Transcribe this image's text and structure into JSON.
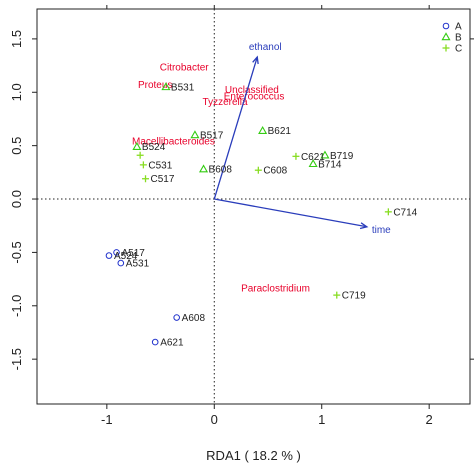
{
  "chart_data": {
    "type": "scatter",
    "title": "",
    "xlabel": "RDA1 ( 18.2 % )",
    "ylabel": "",
    "xlim": [
      -1.65,
      2.38
    ],
    "ylim": [
      -1.92,
      1.78
    ],
    "x_ticks": [
      -1,
      0,
      1,
      2
    ],
    "y_ticks": [
      -1.5,
      -1.0,
      -0.5,
      0.0,
      0.5,
      1.0,
      1.5
    ],
    "x_tick_labels": [
      "-1",
      "0",
      "1",
      "2"
    ],
    "y_tick_labels": [
      "-1.5",
      "-1.0",
      "-0.5",
      "0.0",
      "0.5",
      "1.0",
      "1.5"
    ],
    "reference_lines": {
      "x": 0,
      "y": 0,
      "style": "dotted"
    },
    "grid": false,
    "legend": {
      "placement": "top-right",
      "entries": [
        {
          "label": "A",
          "marker": "circle",
          "color": "#2233cc"
        },
        {
          "label": "B",
          "marker": "triangle",
          "color": "#33cc11"
        },
        {
          "label": "C",
          "marker": "plus",
          "color": "#88dd22"
        }
      ]
    },
    "series": [
      {
        "name": "A",
        "marker": "circle",
        "color": "#2233cc",
        "points": [
          {
            "label": "A517",
            "x": -0.91,
            "y": -0.5
          },
          {
            "label": "A524",
            "x": -0.98,
            "y": -0.53
          },
          {
            "label": "A531",
            "x": -0.87,
            "y": -0.6
          },
          {
            "label": "A608",
            "x": -0.35,
            "y": -1.11
          },
          {
            "label": "A621",
            "x": -0.55,
            "y": -1.34
          }
        ]
      },
      {
        "name": "B",
        "marker": "triangle",
        "color": "#33cc11",
        "points": [
          {
            "label": "B531",
            "x": -0.45,
            "y": 1.05
          },
          {
            "label": "B517",
            "x": -0.18,
            "y": 0.6
          },
          {
            "label": "B621",
            "x": 0.45,
            "y": 0.64
          },
          {
            "label": "B524",
            "x": -0.72,
            "y": 0.49
          },
          {
            "label": "B608",
            "x": -0.1,
            "y": 0.28
          },
          {
            "label": "B719",
            "x": 1.03,
            "y": 0.41
          },
          {
            "label": "B714",
            "x": 0.92,
            "y": 0.33
          }
        ]
      },
      {
        "name": "C",
        "marker": "plus",
        "color": "#88dd22",
        "points": [
          {
            "label": "C531",
            "x": -0.66,
            "y": 0.32
          },
          {
            "label": "C517",
            "x": -0.64,
            "y": 0.19
          },
          {
            "label": "C621",
            "x": 0.76,
            "y": 0.4
          },
          {
            "label": "C608",
            "x": 0.41,
            "y": 0.27
          },
          {
            "label": "C714",
            "x": 1.62,
            "y": -0.12
          },
          {
            "label": "C719",
            "x": 1.14,
            "y": -0.9
          }
        ]
      },
      {
        "name": "",
        "marker": "plus",
        "color": "#88dd22",
        "points": [
          {
            "label": "",
            "x": -0.69,
            "y": 0.41
          }
        ]
      }
    ],
    "vectors": [
      {
        "label": "ethanol",
        "x": 0.4,
        "y": 1.33,
        "color": "#2a3dbb"
      },
      {
        "label": "time",
        "x": 1.42,
        "y": -0.26,
        "color": "#2a3dbb"
      }
    ],
    "taxa_labels": [
      {
        "label": "Citrobacter",
        "x": -0.28,
        "y": 1.23
      },
      {
        "label": "Proteus",
        "x": -0.55,
        "y": 1.07
      },
      {
        "label": "Unclassified",
        "x": 0.35,
        "y": 1.02
      },
      {
        "label": "Enterococcus",
        "x": 0.37,
        "y": 0.96
      },
      {
        "label": "Tyzzerella",
        "x": 0.1,
        "y": 0.91
      },
      {
        "label": "Macellibacteroides",
        "x": -0.38,
        "y": 0.54
      },
      {
        "label": "Paraclostridium",
        "x": 0.57,
        "y": -0.84
      }
    ],
    "color": {
      "taxon_label": "#e8002a",
      "vector": "#2a3dbb"
    }
  }
}
